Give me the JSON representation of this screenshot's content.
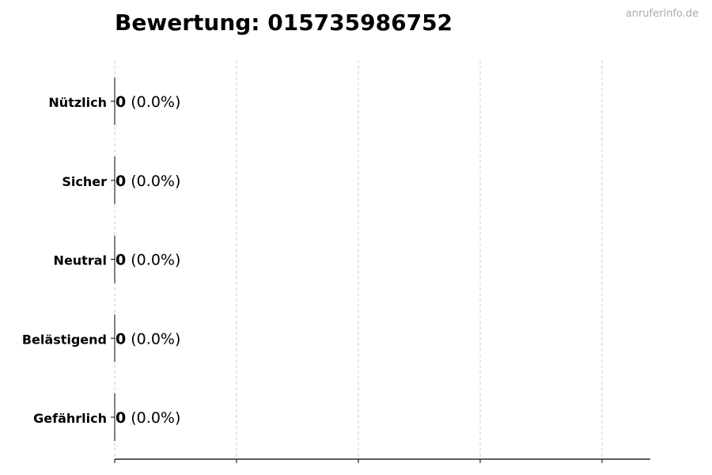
{
  "watermark": "anruferinfo.de",
  "chart_data": {
    "type": "bar",
    "orientation": "horizontal",
    "title": "Bewertung: 015735986752",
    "categories": [
      "Nützlich",
      "Sicher",
      "Neutral",
      "Belästigend",
      "Gefährlich"
    ],
    "values": [
      0,
      0,
      0,
      0,
      0
    ],
    "percent_labels": [
      "(0.0%)",
      "(0.0%)",
      "(0.0%)",
      "(0.0%)",
      "(0.0%)"
    ],
    "xlabel": "",
    "ylabel": "",
    "grid": "x, dashed",
    "x_tick_labels_shown": false,
    "colors": {
      "bar": "#000000",
      "grid": "#cccccc",
      "watermark": "#aaaaaa"
    }
  }
}
